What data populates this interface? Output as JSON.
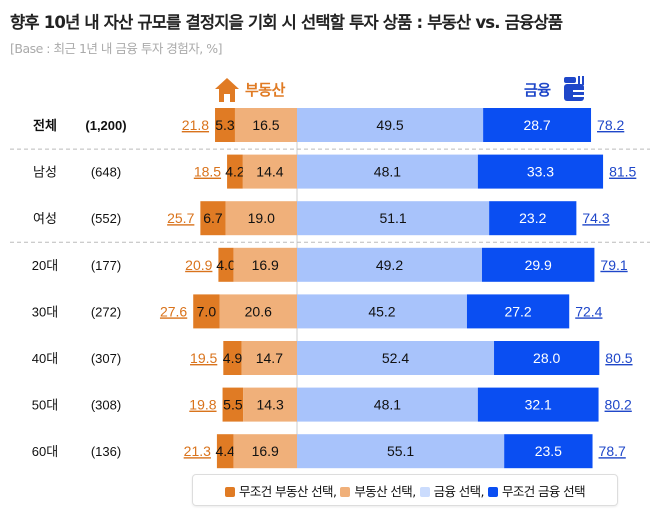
{
  "title": "향후 10년 내 자산 규모를 결정지을 기회 시 선택할 투자 상품 : 부동산 vs. 금융상품",
  "subtitle": "[Base : 최근 1년 내 금융 투자 경험자, %]",
  "headers": {
    "left": "부동산",
    "right": "금융",
    "left_icon": "house-icon",
    "right_icon": "wallet-icon"
  },
  "colors": {
    "strong_re": "#e07b24",
    "re": "#f0b07a",
    "fin": "#a8c3fb",
    "strong_fin": "#0a4ef2",
    "re_total": "#d9731c",
    "fin_total": "#1f47c9"
  },
  "legend": [
    "무조건 부동산 선택,",
    "부동산 선택,",
    "금융 선택,",
    "무조건 금융 선택"
  ],
  "chart_data": {
    "type": "bar",
    "orientation": "horizontal-diverging",
    "categories": [
      "전체",
      "남성",
      "여성",
      "20대",
      "30대",
      "40대",
      "50대",
      "60대"
    ],
    "sample_sizes": [
      "(1,200)",
      "(648)",
      "(552)",
      "(177)",
      "(272)",
      "(307)",
      "(308)",
      "(136)"
    ],
    "series": [
      {
        "name": "무조건 부동산 선택",
        "values": [
          5.3,
          4.2,
          6.7,
          4.0,
          7.0,
          4.9,
          5.5,
          4.4
        ]
      },
      {
        "name": "부동산 선택",
        "values": [
          16.5,
          14.4,
          19.0,
          16.9,
          20.6,
          14.7,
          14.3,
          16.9
        ]
      },
      {
        "name": "금융 선택",
        "values": [
          49.5,
          48.1,
          51.1,
          49.2,
          45.2,
          52.4,
          48.1,
          55.1
        ]
      },
      {
        "name": "무조건 금융 선택",
        "values": [
          28.7,
          33.3,
          23.2,
          29.9,
          27.2,
          28.0,
          32.1,
          23.5
        ]
      }
    ],
    "real_estate_totals": [
      "21.8",
      "18.5",
      "25.7",
      "20.9",
      "27.6",
      "19.5",
      "19.8",
      "21.3"
    ],
    "finance_totals": [
      "78.2",
      "81.5",
      "74.3",
      "79.1",
      "72.4",
      "80.5",
      "80.2",
      "78.7"
    ],
    "group_separators_after": [
      "전체",
      "여성"
    ]
  }
}
